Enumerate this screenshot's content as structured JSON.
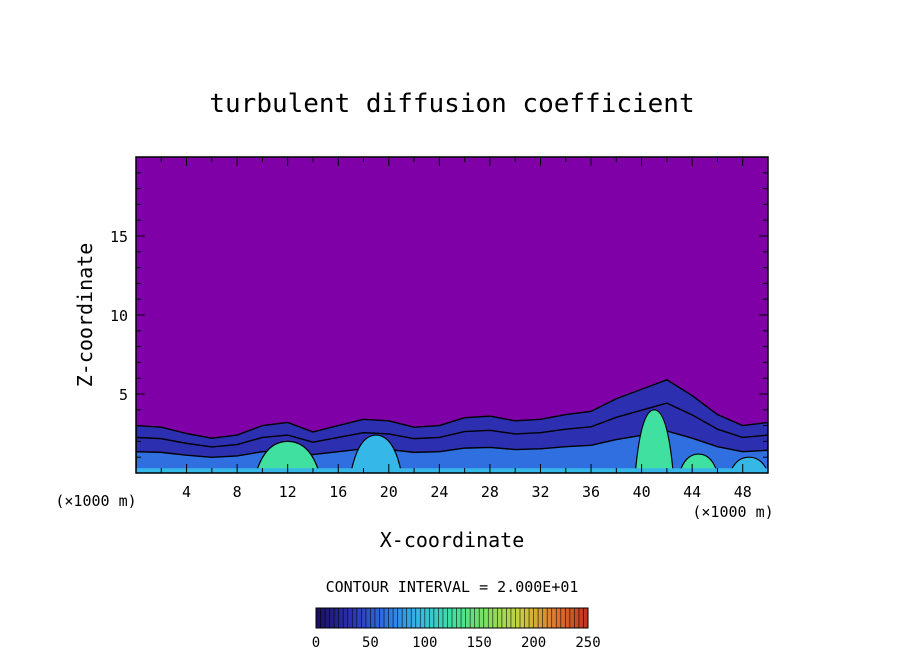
{
  "chart_data": {
    "type": "heatmap",
    "title": "turbulent diffusion coefficient",
    "xlabel": "X-coordinate",
    "ylabel": "Z-coordinate",
    "x_unit": "(×1000 m)",
    "x_unit_right": "(×1000 m)",
    "xlim": [
      0,
      50
    ],
    "ylim": [
      0,
      20
    ],
    "x_ticks": [
      4,
      8,
      12,
      16,
      20,
      24,
      28,
      32,
      36,
      40,
      44,
      48
    ],
    "y_ticks": [
      5,
      10,
      15
    ],
    "contour_interval_text": "CONTOUR INTERVAL = 2.000E+01",
    "colorbar": {
      "range": [
        0,
        250
      ],
      "ticks": [
        0,
        50,
        100,
        150,
        200,
        250
      ],
      "colors": [
        "#1a0f5c",
        "#2b2fb0",
        "#2f6fe0",
        "#35b8e8",
        "#3fe0a0",
        "#7fe060",
        "#c8d040",
        "#e07a30",
        "#c03020"
      ]
    },
    "background_color": "#8000a8",
    "boundary_layer_profile": [
      {
        "x": 0,
        "z": 3.0
      },
      {
        "x": 2,
        "z": 2.9
      },
      {
        "x": 4,
        "z": 2.5
      },
      {
        "x": 6,
        "z": 2.2
      },
      {
        "x": 8,
        "z": 2.4
      },
      {
        "x": 10,
        "z": 3.0
      },
      {
        "x": 12,
        "z": 3.2
      },
      {
        "x": 14,
        "z": 2.6
      },
      {
        "x": 16,
        "z": 3.0
      },
      {
        "x": 18,
        "z": 3.4
      },
      {
        "x": 20,
        "z": 3.3
      },
      {
        "x": 22,
        "z": 2.9
      },
      {
        "x": 24,
        "z": 3.0
      },
      {
        "x": 26,
        "z": 3.5
      },
      {
        "x": 28,
        "z": 3.6
      },
      {
        "x": 30,
        "z": 3.3
      },
      {
        "x": 32,
        "z": 3.4
      },
      {
        "x": 34,
        "z": 3.7
      },
      {
        "x": 36,
        "z": 3.9
      },
      {
        "x": 38,
        "z": 4.7
      },
      {
        "x": 40,
        "z": 5.3
      },
      {
        "x": 42,
        "z": 5.9
      },
      {
        "x": 44,
        "z": 4.9
      },
      {
        "x": 46,
        "z": 3.7
      },
      {
        "x": 48,
        "z": 3.0
      },
      {
        "x": 50,
        "z": 3.2
      }
    ],
    "core_regions": [
      {
        "x_start": 9.5,
        "x_end": 14.5,
        "z_top": 2.0,
        "level": 110
      },
      {
        "x_start": 17.0,
        "x_end": 21.0,
        "z_top": 2.4,
        "level": 90
      },
      {
        "x_start": 39.5,
        "x_end": 42.5,
        "z_top": 4.0,
        "level": 140
      },
      {
        "x_start": 43.0,
        "x_end": 46.0,
        "z_top": 1.2,
        "level": 120
      },
      {
        "x_start": 47.0,
        "x_end": 50.0,
        "z_top": 1.0,
        "level": 100
      }
    ]
  }
}
